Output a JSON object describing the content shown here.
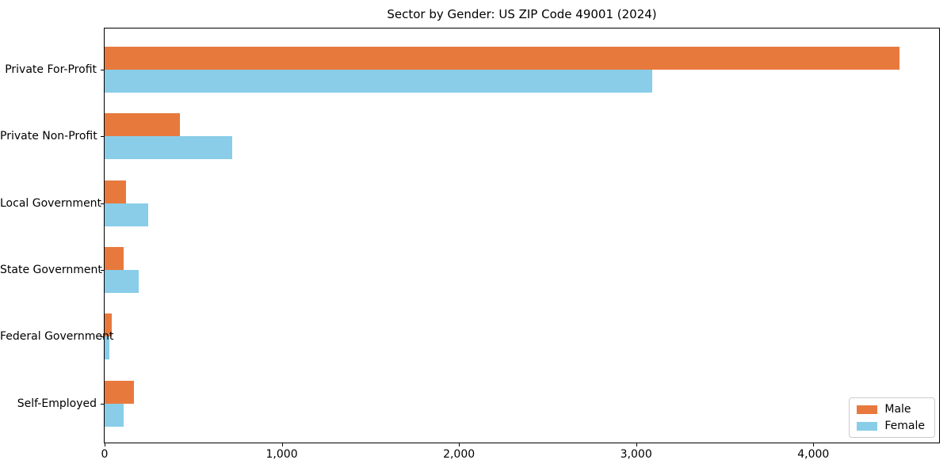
{
  "chart_data": {
    "type": "bar",
    "orientation": "horizontal",
    "title": "Sector by Gender: US ZIP Code 49001 (2024)",
    "categories": [
      "Private For-Profit",
      "Private Non-Profit",
      "Local Government",
      "State Government",
      "Federal Government",
      "Self-Employed"
    ],
    "series": [
      {
        "name": "Male",
        "color": "#e8793d",
        "values": [
          4487,
          425,
          120,
          107,
          39,
          164
        ]
      },
      {
        "name": "Female",
        "color": "#89cde9",
        "values": [
          3089,
          722,
          245,
          192,
          28,
          107
        ]
      }
    ],
    "xlim": [
      0,
      4710
    ],
    "xtick_values": [
      0,
      1000,
      2000,
      3000,
      4000
    ],
    "xtick_labels": [
      "0",
      "1,000",
      "2,000",
      "3,000",
      "4,000"
    ],
    "xlabel": "",
    "ylabel": "",
    "grid": false,
    "legend_position": "lower right",
    "background_color": "#ffffff",
    "text_color": "#000000",
    "spine_color": "#000000"
  }
}
